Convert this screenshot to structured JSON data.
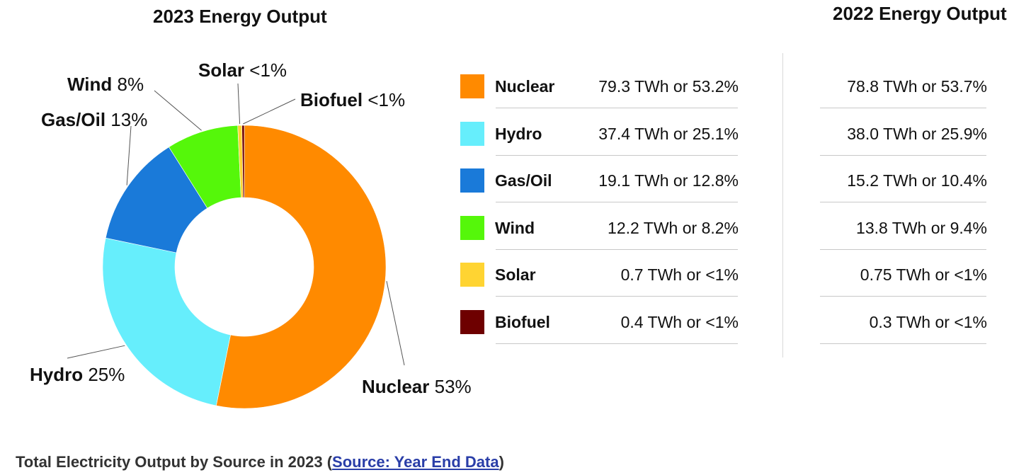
{
  "chart_data": [
    {
      "type": "pie",
      "title": "2023 Energy Output",
      "donut": true,
      "slices": [
        {
          "name": "Nuclear",
          "percent_label": "53%",
          "value": 53.2,
          "color": "#ff8a00"
        },
        {
          "name": "Hydro",
          "percent_label": "25%",
          "value": 25.1,
          "color": "#66eefc"
        },
        {
          "name": "Gas/Oil",
          "percent_label": "13%",
          "value": 12.8,
          "color": "#1a7ad9"
        },
        {
          "name": "Wind",
          "percent_label": "8%",
          "value": 8.2,
          "color": "#55f70a"
        },
        {
          "name": "Solar",
          "percent_label": "<1%",
          "value": 0.47,
          "color": "#ffd432"
        },
        {
          "name": "Biofuel",
          "percent_label": "<1%",
          "value": 0.27,
          "color": "#6e0000"
        }
      ]
    },
    {
      "type": "table",
      "title": "2022 Energy Output",
      "rows": [
        {
          "name": "Nuclear",
          "color": "#ff8a00",
          "value_2023": "79.3 TWh or 53.2%",
          "value_2022": "78.8 TWh or 53.7%"
        },
        {
          "name": "Hydro",
          "color": "#66eefc",
          "value_2023": "37.4 TWh or 25.1%",
          "value_2022": "38.0 TWh or 25.9%"
        },
        {
          "name": "Gas/Oil",
          "color": "#1a7ad9",
          "value_2023": "19.1 TWh or 12.8%",
          "value_2022": "15.2 TWh or 10.4%"
        },
        {
          "name": "Wind",
          "color": "#55f70a",
          "value_2023": "12.2 TWh or 8.2%",
          "value_2022": "13.8 TWh or 9.4%"
        },
        {
          "name": "Solar",
          "color": "#ffd432",
          "value_2023": "0.7 TWh or <1%",
          "value_2022": "0.75 TWh or <1%"
        },
        {
          "name": "Biofuel",
          "color": "#6e0000",
          "value_2023": "0.4 TWh or <1%",
          "value_2022": "0.3 TWh or <1%"
        }
      ]
    }
  ],
  "caption": {
    "prefix": "Total Electricity Output by Source in 2023 (",
    "link_text": "Source: Year End Data",
    "suffix": ")"
  }
}
